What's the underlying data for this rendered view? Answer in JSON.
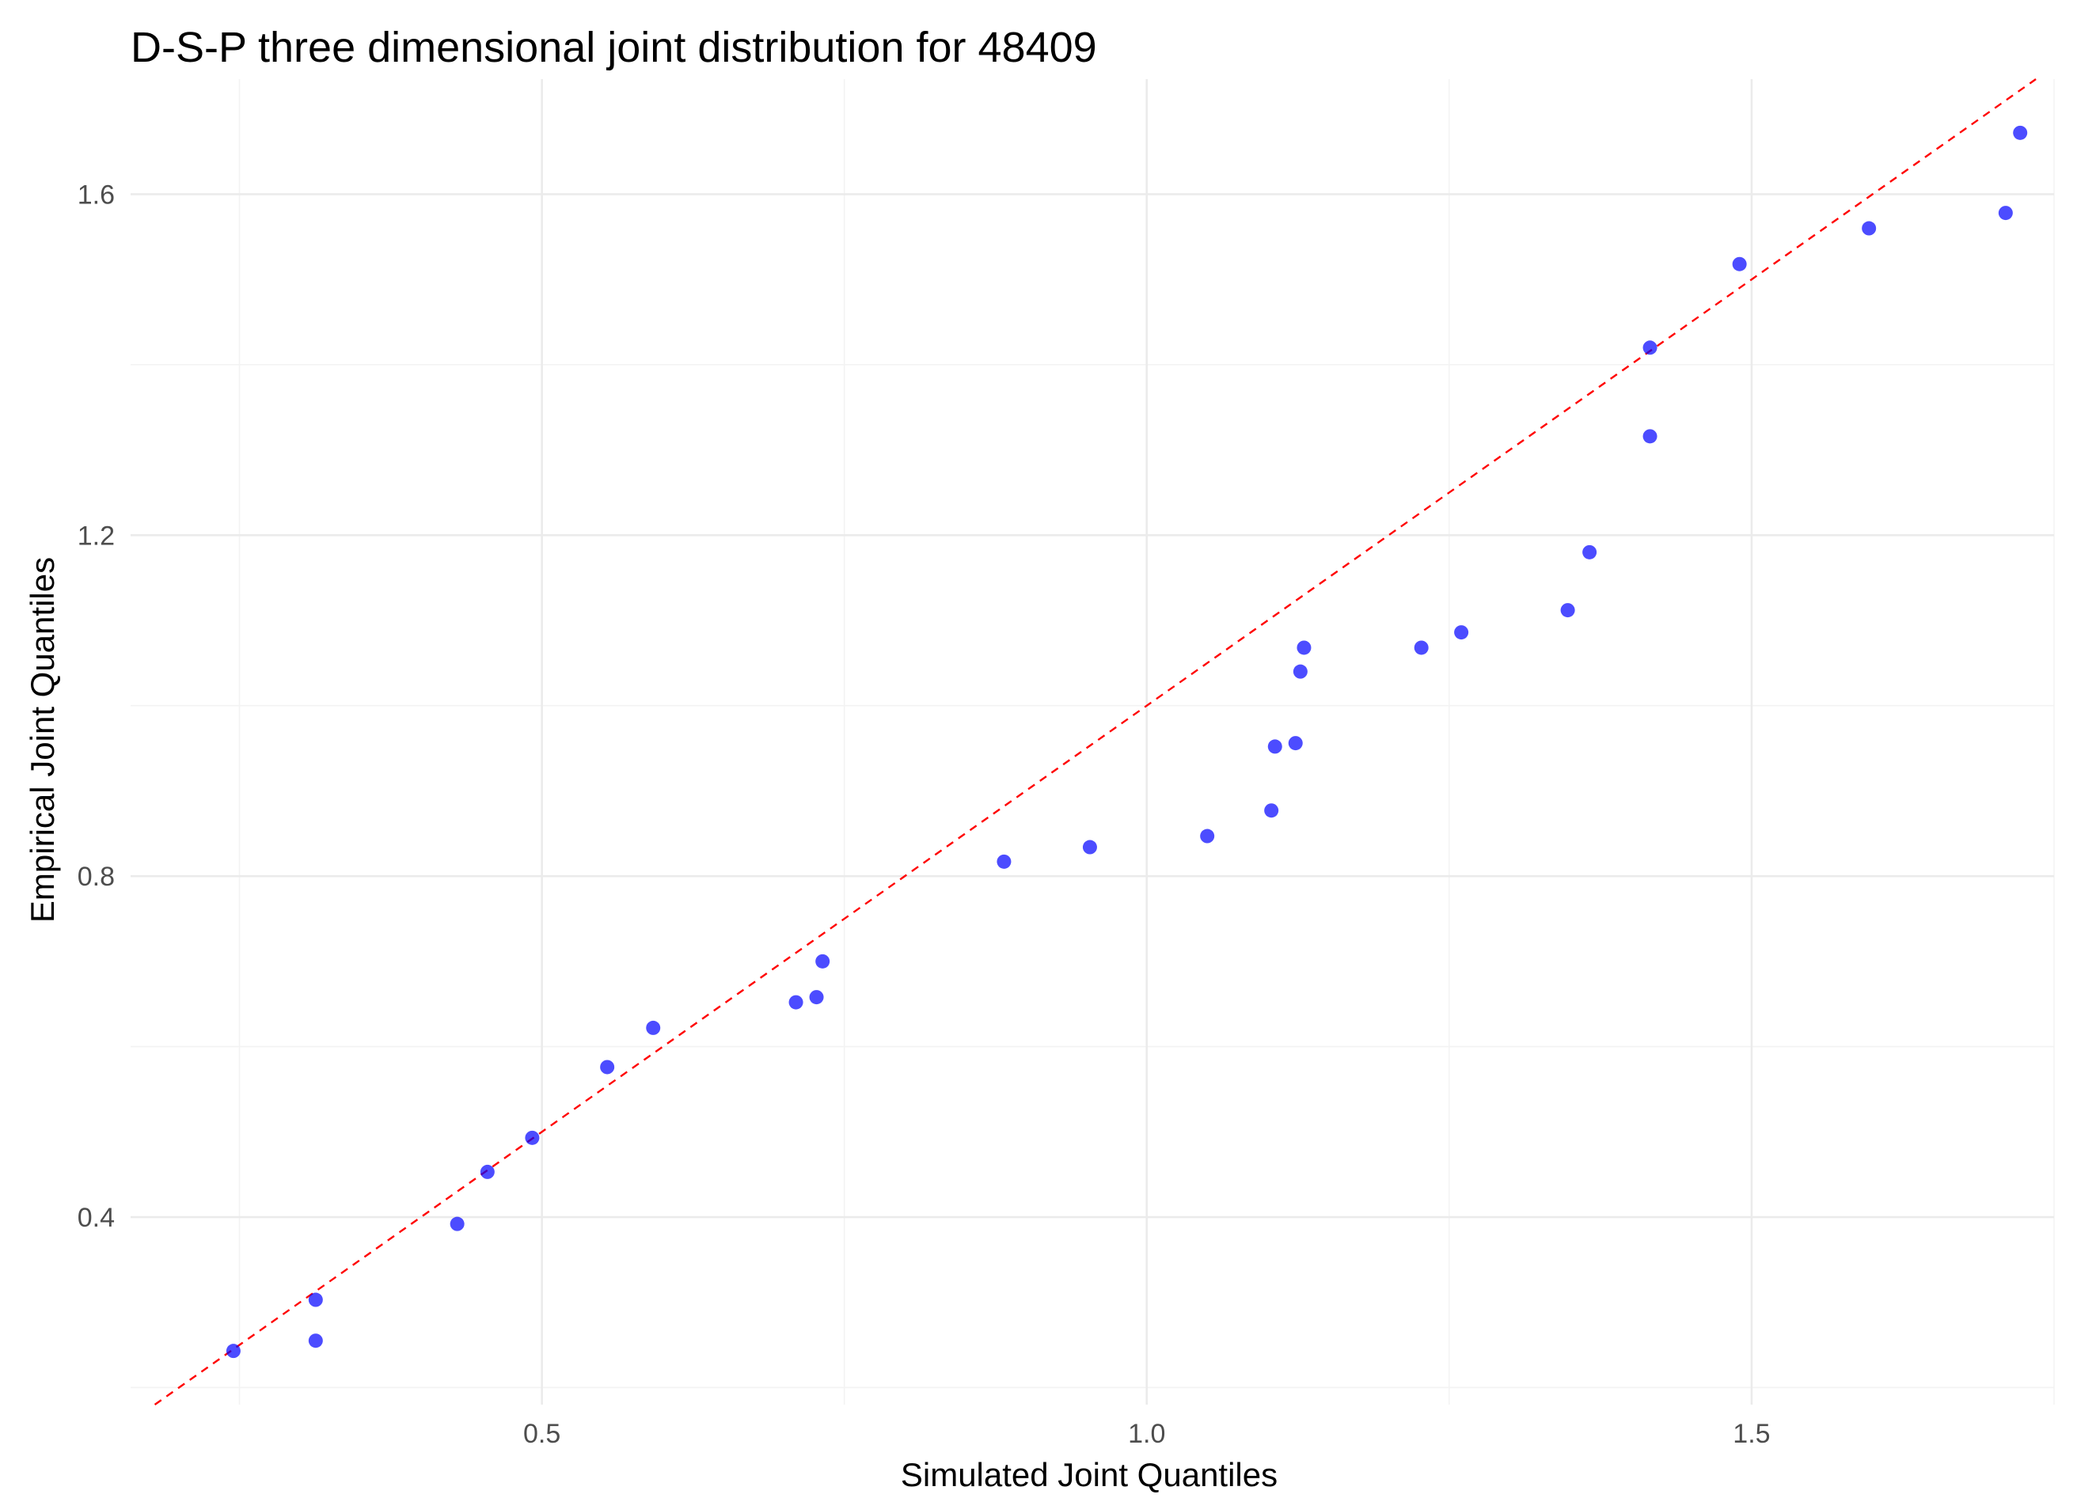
{
  "chart_data": {
    "type": "scatter",
    "title": "D-S-P three dimensional joint distribution for 48409",
    "xlabel": "Simulated Joint Quantiles",
    "ylabel": "Empirical Joint Quantiles",
    "xlim": [
      0.16,
      1.75
    ],
    "ylim": [
      0.18,
      1.735
    ],
    "x_ticks": [
      0.5,
      1.0,
      1.5
    ],
    "x_tick_labels": [
      "0.5",
      "1.0",
      "1.5"
    ],
    "y_ticks": [
      0.4,
      0.8,
      1.2,
      1.6
    ],
    "y_tick_labels": [
      "0.4",
      "0.8",
      "1.2",
      "1.6"
    ],
    "grid": true,
    "point_color": "#0000ff",
    "reference_line": {
      "slope": 1,
      "intercept": 0,
      "color": "#ff0000",
      "style": "dashed"
    },
    "points": [
      {
        "x": 0.245,
        "y": 0.243
      },
      {
        "x": 0.313,
        "y": 0.255
      },
      {
        "x": 0.313,
        "y": 0.303
      },
      {
        "x": 0.43,
        "y": 0.392
      },
      {
        "x": 0.455,
        "y": 0.453
      },
      {
        "x": 0.492,
        "y": 0.493
      },
      {
        "x": 0.554,
        "y": 0.576
      },
      {
        "x": 0.592,
        "y": 0.622
      },
      {
        "x": 0.71,
        "y": 0.652
      },
      {
        "x": 0.727,
        "y": 0.658
      },
      {
        "x": 0.732,
        "y": 0.7
      },
      {
        "x": 0.882,
        "y": 0.817
      },
      {
        "x": 0.953,
        "y": 0.834
      },
      {
        "x": 1.05,
        "y": 0.847
      },
      {
        "x": 1.103,
        "y": 0.877
      },
      {
        "x": 1.106,
        "y": 0.952
      },
      {
        "x": 1.123,
        "y": 0.956
      },
      {
        "x": 1.127,
        "y": 1.04
      },
      {
        "x": 1.13,
        "y": 1.068
      },
      {
        "x": 1.227,
        "y": 1.068
      },
      {
        "x": 1.26,
        "y": 1.086
      },
      {
        "x": 1.348,
        "y": 1.112
      },
      {
        "x": 1.366,
        "y": 1.18
      },
      {
        "x": 1.416,
        "y": 1.316
      },
      {
        "x": 1.416,
        "y": 1.42
      },
      {
        "x": 1.49,
        "y": 1.518
      },
      {
        "x": 1.597,
        "y": 1.56
      },
      {
        "x": 1.71,
        "y": 1.578
      },
      {
        "x": 1.722,
        "y": 1.672
      }
    ]
  }
}
